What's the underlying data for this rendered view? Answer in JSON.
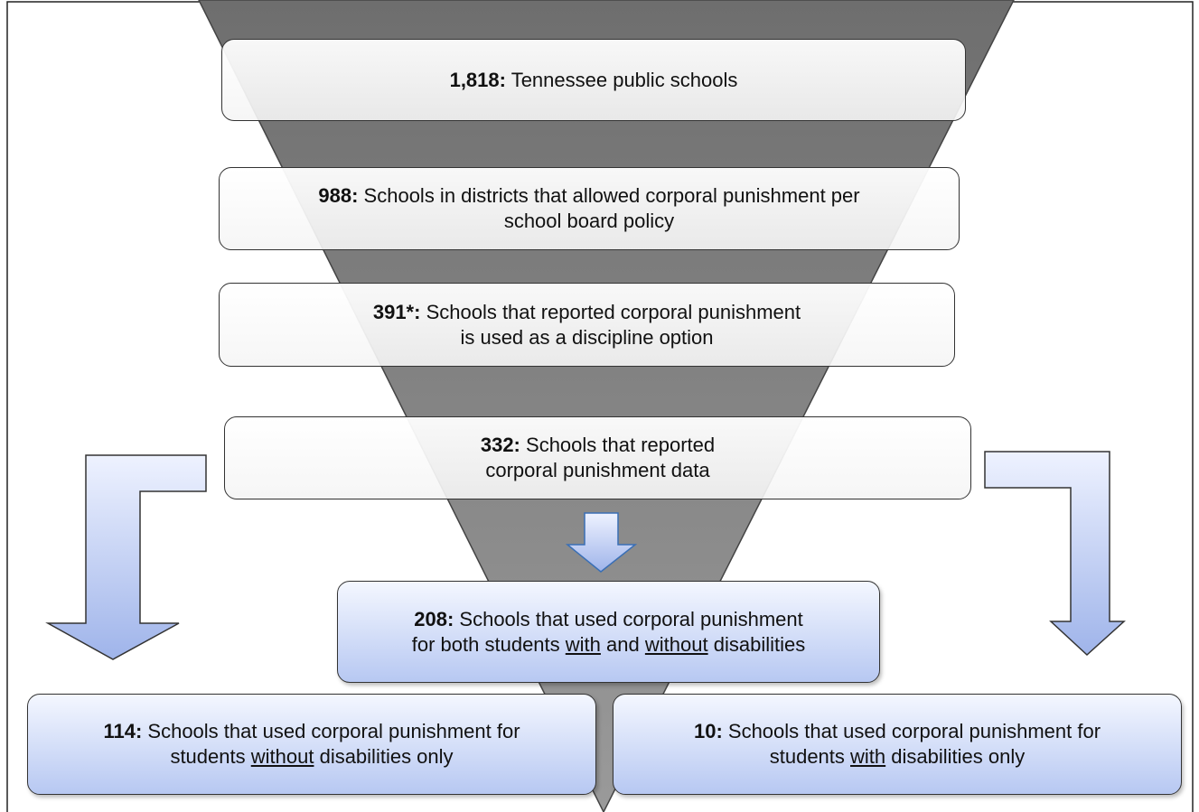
{
  "nodes": [
    {
      "number": "1,818:",
      "lines": [
        [
          "Tennessee public schools"
        ]
      ]
    },
    {
      "number": "988:",
      "lines": [
        [
          "Schools in districts that allowed corporal punishment per"
        ],
        [
          "school board policy"
        ]
      ]
    },
    {
      "number": "391*:",
      "lines": [
        [
          "Schools that reported corporal punishment"
        ],
        [
          "is used as a discipline option"
        ]
      ]
    },
    {
      "number": "332:",
      "lines": [
        [
          "Schools that reported"
        ],
        [
          "corporal punishment data"
        ]
      ]
    },
    {
      "number": "208:",
      "lines": [
        [
          "Schools that used corporal punishment"
        ],
        [
          "for both students",
          "with",
          "and",
          "without",
          "disabilities"
        ]
      ]
    },
    {
      "number": "114:",
      "lines": [
        [
          "Schools that used corporal punishment for"
        ],
        [
          "students",
          "without",
          "disabilities only"
        ]
      ]
    },
    {
      "number": "10:",
      "lines": [
        [
          "Schools that used corporal punishment for"
        ],
        [
          "students",
          "with",
          "disabilities only"
        ]
      ]
    }
  ]
}
